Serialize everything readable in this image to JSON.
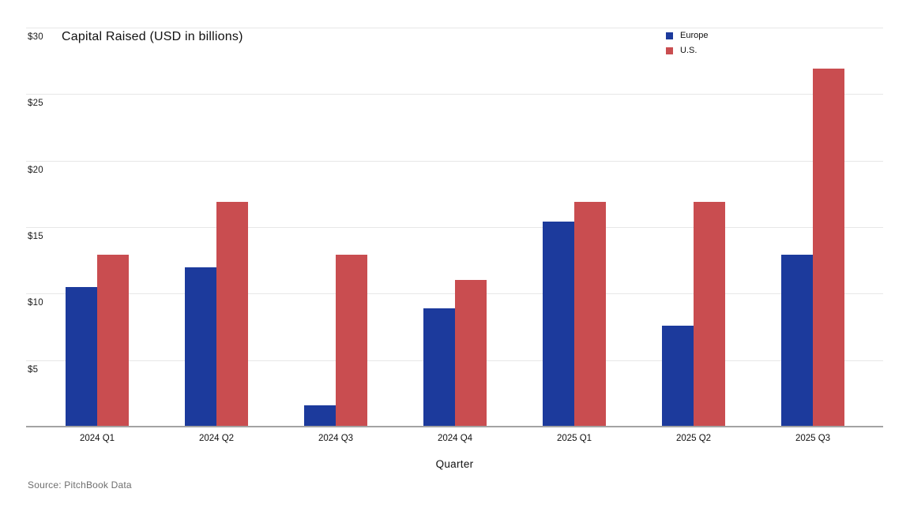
{
  "chart_data": {
    "type": "bar",
    "title": "Capital Raised (USD in billions)",
    "xlabel": "Quarter",
    "ylabel": "",
    "categories": [
      "2024 Q1",
      "2024 Q2",
      "2024 Q3",
      "2024 Q4",
      "2025 Q1",
      "2025 Q2",
      "2025 Q3"
    ],
    "series": [
      {
        "name": "Europe",
        "color": "#1c3a9c",
        "values": [
          10.5,
          12.0,
          1.6,
          8.9,
          15.4,
          7.6,
          12.9
        ]
      },
      {
        "name": "U.S.",
        "color": "#c94d50",
        "values": [
          12.9,
          16.9,
          12.9,
          11.0,
          16.9,
          16.9,
          26.9
        ]
      }
    ],
    "ylim": [
      0,
      30
    ],
    "yticks": [
      {
        "value": 5,
        "label": "$5"
      },
      {
        "value": 10,
        "label": "$10"
      },
      {
        "value": 15,
        "label": "$15"
      },
      {
        "value": 20,
        "label": "$20"
      },
      {
        "value": 25,
        "label": "$25"
      },
      {
        "value": 30,
        "label": "$30"
      }
    ],
    "grid": "horizontal",
    "legend_position": "top-right",
    "colors": {
      "grid": "#e7e7e7",
      "axis": "#a3a3a3",
      "text": "#111111",
      "muted_text": "#6e6e6e"
    }
  },
  "footer": {
    "source": "Source: PitchBook Data"
  }
}
